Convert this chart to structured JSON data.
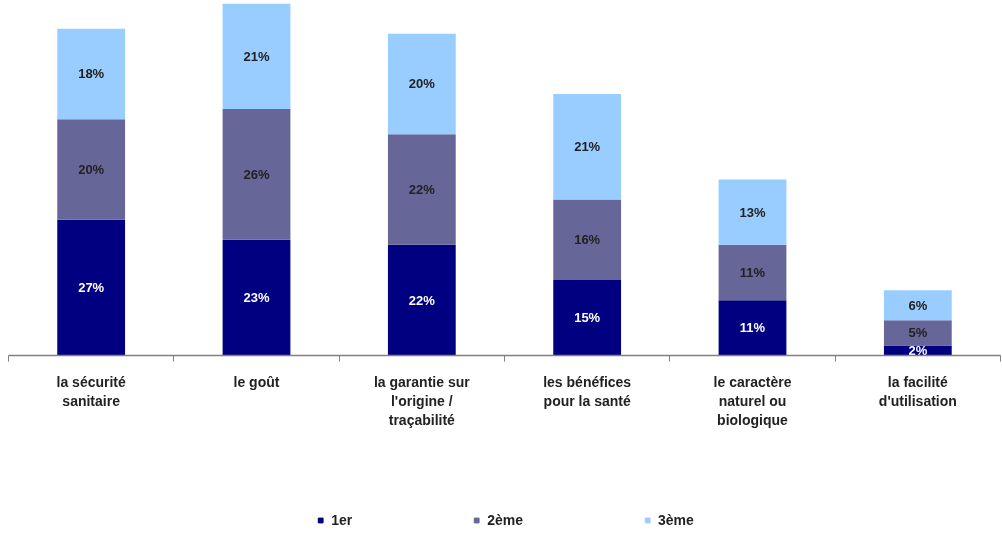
{
  "chart_data": {
    "type": "bar",
    "stacked": true,
    "categories": [
      "la sécurité\nsanitaire",
      "le goût",
      "la garantie sur\nl'origine /\ntraçabilité",
      "les bénéfices\npour la santé",
      "le caractère\nnaturel ou\nbiologique",
      "la facilité\nd'utilisation"
    ],
    "series": [
      {
        "name": "1er",
        "color": "#000080",
        "values": [
          27,
          23,
          22,
          15,
          11,
          2
        ],
        "value_labels": [
          "27%",
          "23%",
          "22%",
          "15%",
          "11%",
          "2%"
        ]
      },
      {
        "name": "2ème",
        "color": "#666699",
        "values": [
          20,
          26,
          22,
          16,
          11,
          5
        ],
        "value_labels": [
          "20%",
          "26%",
          "22%",
          "16%",
          "11%",
          "5%"
        ]
      },
      {
        "name": "3ème",
        "color": "#99ccff",
        "values": [
          18,
          21,
          20,
          21,
          13,
          6
        ],
        "value_labels": [
          "18%",
          "21%",
          "20%",
          "21%",
          "13%",
          "6%"
        ]
      }
    ],
    "legend": "bottom"
  }
}
